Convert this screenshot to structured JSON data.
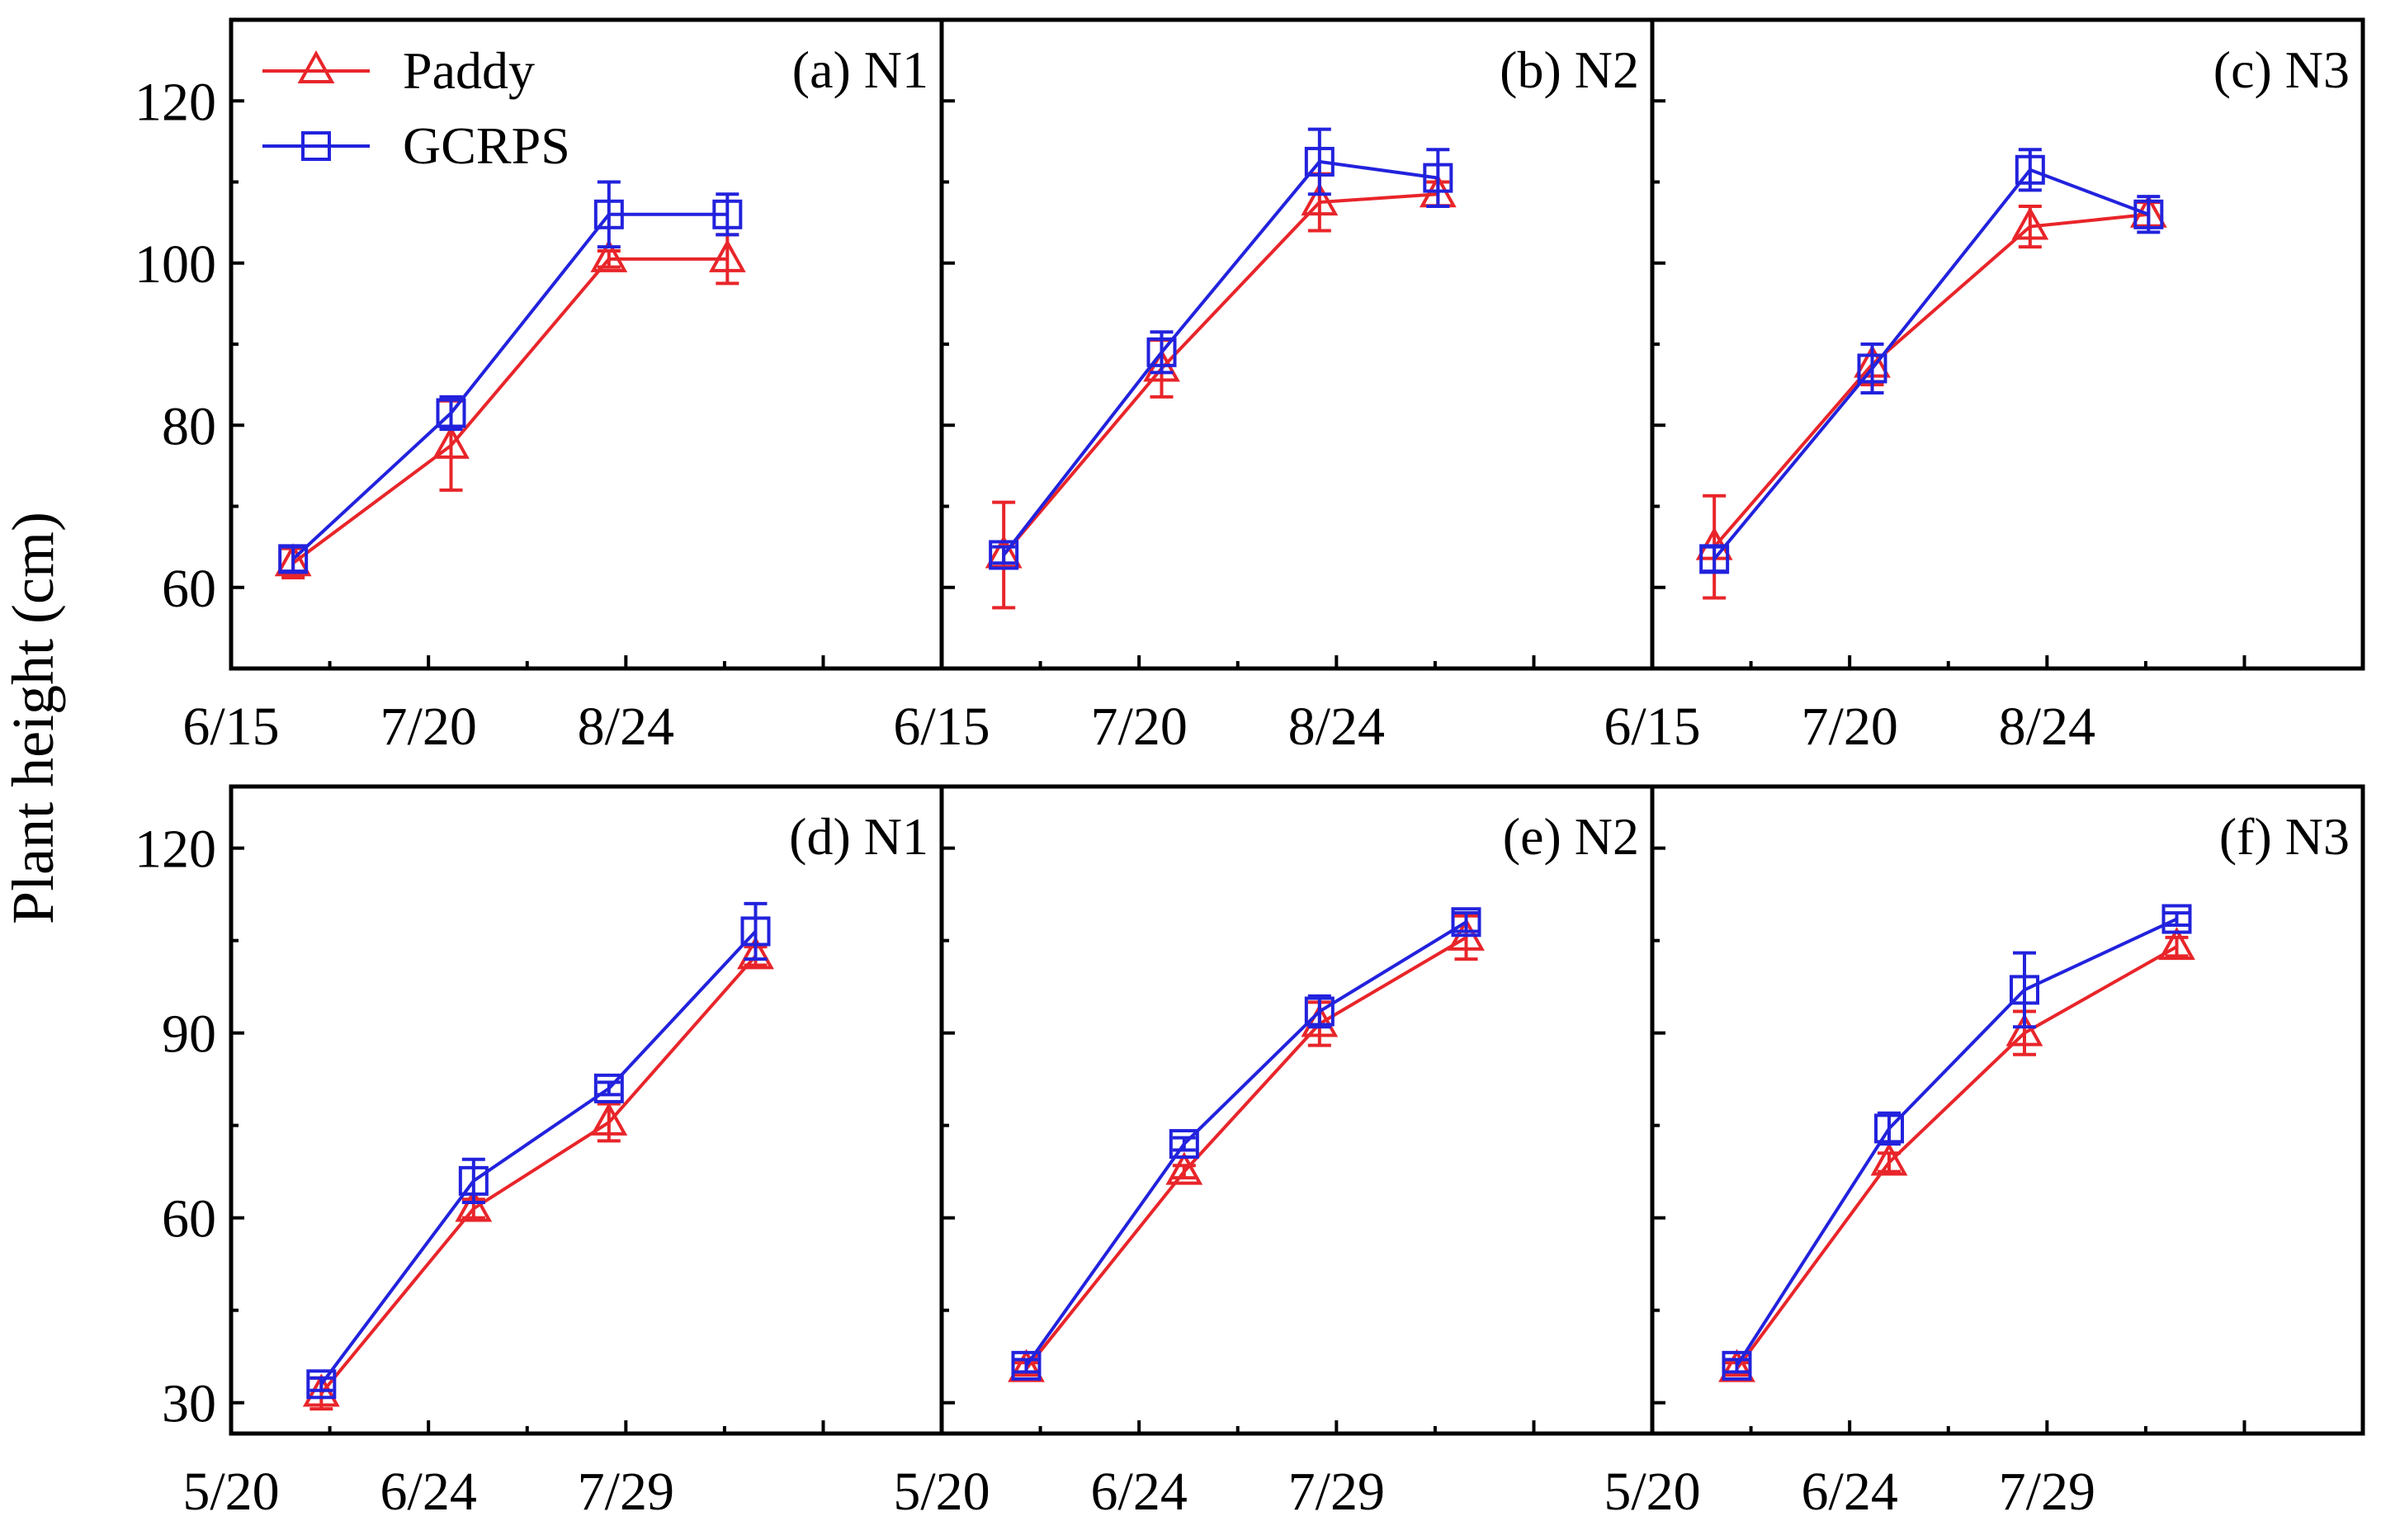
{
  "figure": {
    "ylabel": "Plant height (cm)",
    "colors": {
      "paddy": "#e8252a",
      "gcrps": "#2222dd",
      "frame": "#000000"
    }
  },
  "legend": {
    "paddy": "Paddy",
    "gcrps": "GCRPS"
  },
  "chart_data": [
    {
      "type": "line",
      "panel": "(a) N1",
      "title": "(a) N1",
      "xlim": [
        0,
        126
      ],
      "ylim": [
        50,
        130
      ],
      "xticks": [
        0,
        35,
        70,
        105
      ],
      "xtick_labels": [
        "6/15",
        "7/20",
        "8/24",
        ""
      ],
      "yticks": [
        60,
        80,
        100,
        120
      ],
      "ytick_labels": [
        "60",
        "80",
        "100",
        "120"
      ],
      "series": [
        {
          "name": "Paddy",
          "x": [
            11,
            39,
            67,
            88
          ],
          "y": [
            63,
            77.5,
            100.5,
            100.5
          ],
          "err": [
            1.8,
            5.5,
            1,
            3
          ]
        },
        {
          "name": "GCRPS",
          "x": [
            11,
            39,
            67,
            88
          ],
          "y": [
            63.5,
            81.5,
            106,
            106
          ],
          "err": [
            1.5,
            2,
            4,
            2.5
          ]
        }
      ]
    },
    {
      "type": "line",
      "panel": "(b) N2",
      "title": "(b) N2",
      "xlim": [
        0,
        126
      ],
      "ylim": [
        50,
        130
      ],
      "xticks": [
        0,
        35,
        70,
        105
      ],
      "xtick_labels": [
        "6/15",
        "7/20",
        "8/24",
        ""
      ],
      "yticks": [
        60,
        80,
        100,
        120
      ],
      "ytick_labels": [
        "",
        "",
        "",
        ""
      ],
      "series": [
        {
          "name": "Paddy",
          "x": [
            11,
            39,
            67,
            88
          ],
          "y": [
            64,
            87,
            107.5,
            108.5
          ],
          "err": [
            6.5,
            3.5,
            3.5,
            1.5
          ]
        },
        {
          "name": "GCRPS",
          "x": [
            11,
            39,
            67,
            88
          ],
          "y": [
            64,
            89,
            112.5,
            110.5
          ],
          "err": [
            1,
            2.5,
            4,
            3.5
          ]
        }
      ]
    },
    {
      "type": "line",
      "panel": "(c) N3",
      "title": "(c) N3",
      "xlim": [
        0,
        126
      ],
      "ylim": [
        50,
        130
      ],
      "xticks": [
        0,
        35,
        70,
        105
      ],
      "xtick_labels": [
        "6/15",
        "7/20",
        "8/24",
        ""
      ],
      "yticks": [
        60,
        80,
        100,
        120
      ],
      "ytick_labels": [
        "",
        "",
        "",
        ""
      ],
      "series": [
        {
          "name": "Paddy",
          "x": [
            11,
            39,
            67,
            88
          ],
          "y": [
            65,
            87.5,
            104.5,
            106
          ],
          "err": [
            6.3,
            2.5,
            2.5,
            1.5
          ]
        },
        {
          "name": "GCRPS",
          "x": [
            11,
            39,
            67,
            88
          ],
          "y": [
            63.5,
            87,
            111.5,
            106
          ],
          "err": [
            1.5,
            3,
            2.5,
            2.2
          ]
        }
      ]
    },
    {
      "type": "line",
      "panel": "(d) N1",
      "title": "(d) N1",
      "xlim": [
        0,
        126
      ],
      "ylim": [
        25,
        130
      ],
      "xticks": [
        0,
        35,
        70,
        105
      ],
      "xtick_labels": [
        "5/20",
        "6/24",
        "7/29",
        ""
      ],
      "yticks": [
        30,
        60,
        90,
        120
      ],
      "ytick_labels": [
        "30",
        "60",
        "90",
        "120"
      ],
      "series": [
        {
          "name": "Paddy",
          "x": [
            16,
            43,
            67,
            93
          ],
          "y": [
            31.5,
            61.5,
            75.5,
            102.5
          ],
          "err": [
            2.5,
            1.5,
            3,
            1.5
          ]
        },
        {
          "name": "GCRPS",
          "x": [
            16,
            43,
            67,
            93
          ],
          "y": [
            33,
            66,
            81,
            106.5
          ],
          "err": [
            1,
            3.5,
            1,
            4.5
          ]
        }
      ]
    },
    {
      "type": "line",
      "panel": "(e) N2",
      "title": "(e) N2",
      "xlim": [
        0,
        126
      ],
      "ylim": [
        25,
        130
      ],
      "xticks": [
        0,
        35,
        70,
        105
      ],
      "xtick_labels": [
        "5/20",
        "6/24",
        "7/29",
        ""
      ],
      "yticks": [
        30,
        60,
        90,
        120
      ],
      "ytick_labels": [
        "",
        "",
        "",
        ""
      ],
      "series": [
        {
          "name": "Paddy",
          "x": [
            15,
            43,
            67,
            93
          ],
          "y": [
            35.5,
            67.5,
            91.5,
            105.5
          ],
          "err": [
            1,
            1,
            3.5,
            3.5
          ]
        },
        {
          "name": "GCRPS",
          "x": [
            15,
            43,
            67,
            93
          ],
          "y": [
            36,
            72,
            93.5,
            108
          ],
          "err": [
            1,
            1,
            2.5,
            1.5
          ]
        }
      ]
    },
    {
      "type": "line",
      "panel": "(f) N3",
      "title": "(f) N3",
      "xlim": [
        0,
        126
      ],
      "ylim": [
        25,
        130
      ],
      "xticks": [
        0,
        35,
        70,
        105
      ],
      "xtick_labels": [
        "5/20",
        "6/24",
        "7/29",
        ""
      ],
      "yticks": [
        30,
        60,
        90,
        120
      ],
      "ytick_labels": [
        "",
        "",
        "",
        ""
      ],
      "series": [
        {
          "name": "Paddy",
          "x": [
            15,
            42,
            66,
            93
          ],
          "y": [
            35.5,
            69,
            90,
            104
          ],
          "err": [
            1,
            1.5,
            3.5,
            1.5
          ]
        },
        {
          "name": "GCRPS",
          "x": [
            15,
            42,
            66,
            93
          ],
          "y": [
            36,
            74.5,
            97,
            108.5
          ],
          "err": [
            1,
            2.5,
            6,
            1
          ]
        }
      ]
    }
  ]
}
